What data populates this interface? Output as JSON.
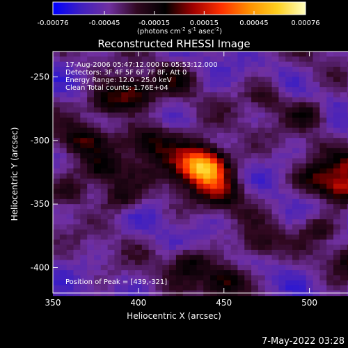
{
  "colorbar": {
    "ticks": [
      "-0.00076",
      "-0.00045",
      "-0.00015",
      "0.00015",
      "0.00045",
      "0.00076"
    ],
    "tick_values": [
      -0.00076,
      -0.00045,
      -0.00015,
      0.00015,
      0.00045,
      0.00076
    ],
    "range": [
      -0.00076,
      0.00076
    ],
    "units": {
      "prefix": "(photons cm",
      "sup1": "-2",
      "mid1": " s",
      "sup2": "-1",
      "mid2": " asec",
      "sup3": "-2",
      "suffix": ")"
    },
    "colors": [
      "#0000ff",
      "#4020c0",
      "#7030a0",
      "#300820",
      "#000000",
      "#a00000",
      "#ff3000",
      "#ff9000",
      "#ffd020",
      "#ffffc0"
    ]
  },
  "chart_data": {
    "type": "heatmap",
    "title": "Reconstructed RHESSI Image",
    "xlabel": "Heliocentric X (arcsec)",
    "ylabel": "Heliocentric Y (arcsec)",
    "xlim": [
      350,
      538
    ],
    "ylim": [
      -420,
      -230
    ],
    "xticks": [
      350,
      400,
      450,
      500
    ],
    "yticks": [
      -250,
      -300,
      -350,
      -400
    ],
    "annotations": [
      "17-Aug-2006 05:47:12.000 to 05:53:12.000",
      "Detectors: 3F 4F 5F 6F 7F 8F, Att 0",
      "Energy Range: 12.0 - 25.0 keV",
      "Clean     Total counts: 1.76E+04"
    ],
    "peak_label": "Position of Peak = [439,-321]",
    "sources": [
      {
        "x": 439,
        "y": -321,
        "amplitude": 1.0,
        "width": 9
      },
      {
        "x": 431,
        "y": -315,
        "amplitude": 0.55,
        "width": 14
      },
      {
        "x": 448,
        "y": -340,
        "amplitude": 0.45,
        "width": 10
      },
      {
        "x": 405,
        "y": -300,
        "amplitude": 0.5,
        "width": 10
      },
      {
        "x": 382,
        "y": -270,
        "amplitude": 0.6,
        "width": 9
      },
      {
        "x": 398,
        "y": -262,
        "amplitude": 0.55,
        "width": 8
      },
      {
        "x": 365,
        "y": -300,
        "amplitude": 0.4,
        "width": 9
      },
      {
        "x": 378,
        "y": -325,
        "amplitude": 0.5,
        "width": 9
      },
      {
        "x": 390,
        "y": -345,
        "amplitude": 0.45,
        "width": 8
      },
      {
        "x": 360,
        "y": -340,
        "amplitude": 0.35,
        "width": 8
      },
      {
        "x": 520,
        "y": -338,
        "amplitude": 0.7,
        "width": 9
      },
      {
        "x": 505,
        "y": -330,
        "amplitude": 0.5,
        "width": 9
      },
      {
        "x": 525,
        "y": -318,
        "amplitude": 0.45,
        "width": 8
      },
      {
        "x": 500,
        "y": -280,
        "amplitude": 0.45,
        "width": 8
      },
      {
        "x": 475,
        "y": -265,
        "amplitude": 0.35,
        "width": 8
      },
      {
        "x": 450,
        "y": -410,
        "amplitude": 0.6,
        "width": 9
      },
      {
        "x": 430,
        "y": -395,
        "amplitude": 0.45,
        "width": 8
      },
      {
        "x": 470,
        "y": -382,
        "amplitude": 0.4,
        "width": 8
      },
      {
        "x": 525,
        "y": -395,
        "amplitude": 0.4,
        "width": 8
      },
      {
        "x": 420,
        "y": -250,
        "amplitude": 0.3,
        "width": 8
      },
      {
        "x": 505,
        "y": -370,
        "amplitude": 0.3,
        "width": 7
      }
    ]
  },
  "footer": {
    "timestamp": "7-May-2022 03:28"
  }
}
